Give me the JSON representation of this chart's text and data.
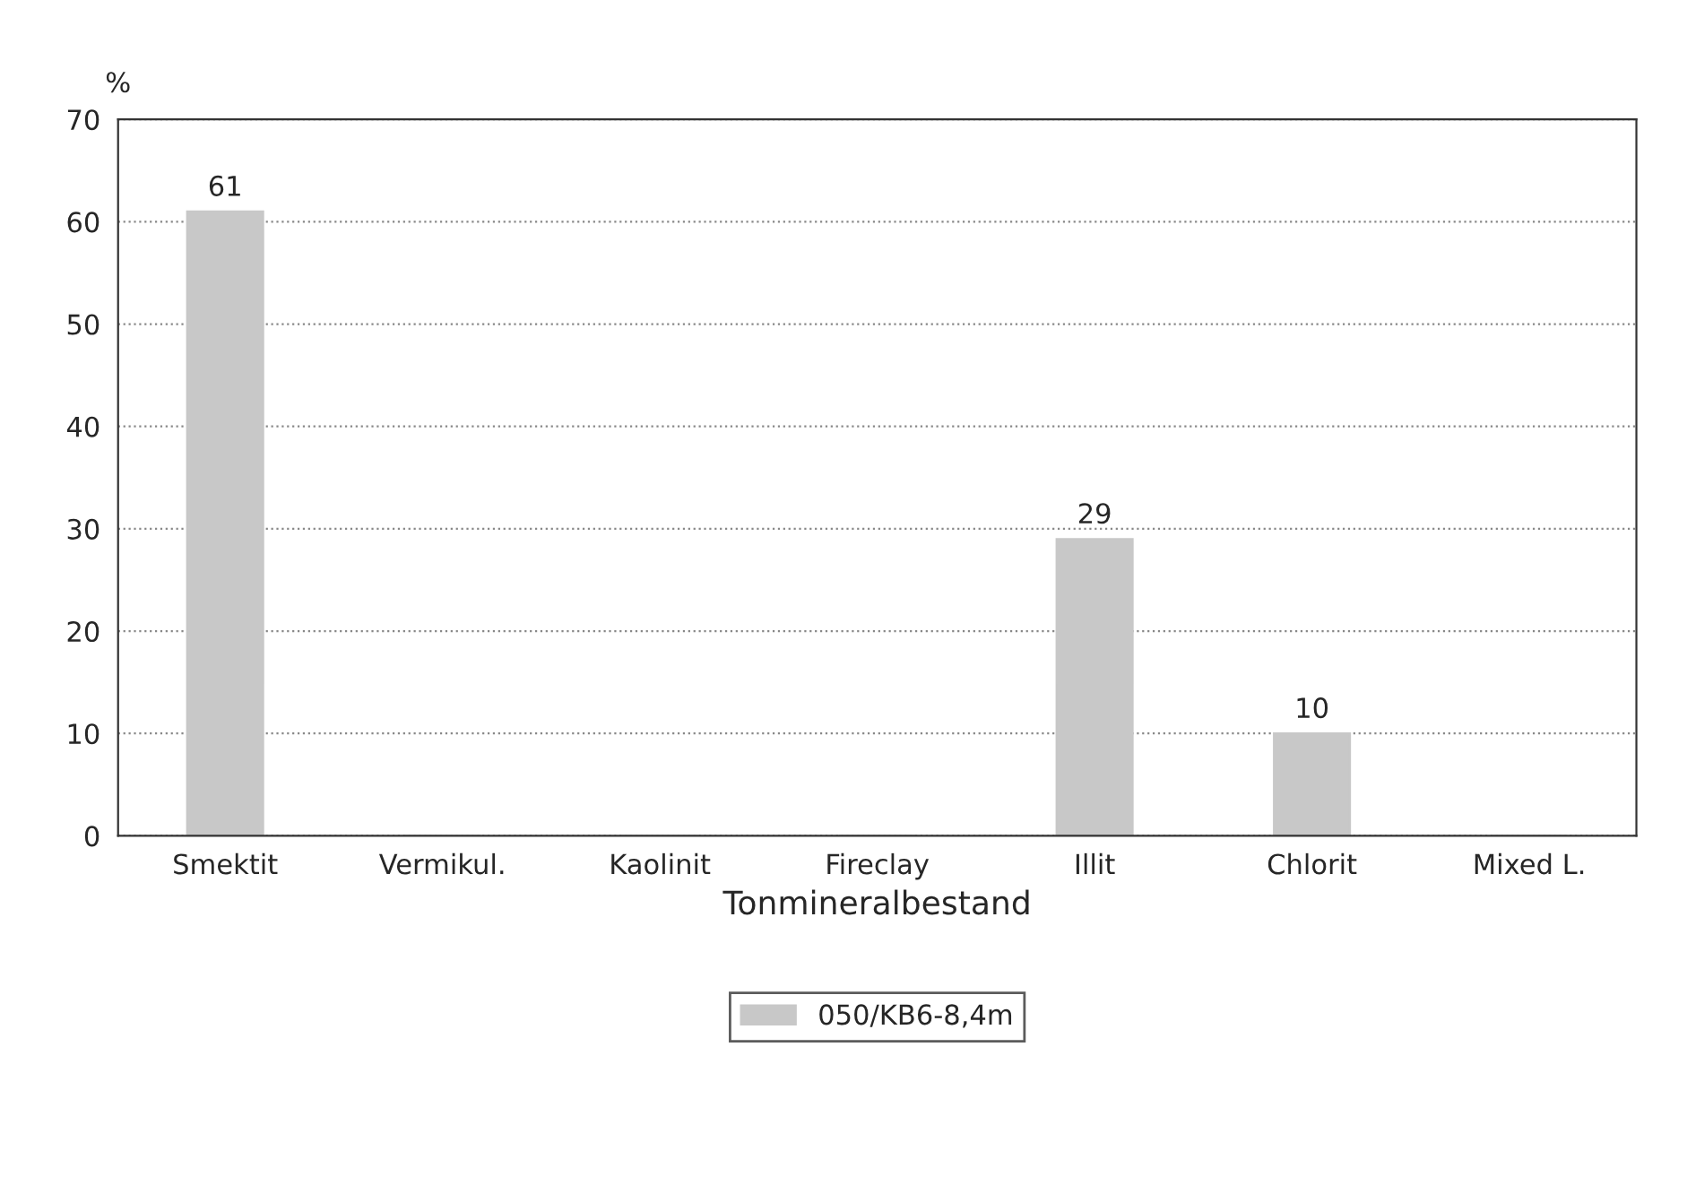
{
  "chart_data": {
    "type": "bar",
    "ylabel": "%",
    "xlabel": "Tonmineralbestand",
    "categories": [
      "Smektit",
      "Vermikul.",
      "Kaolinit",
      "Fireclay",
      "Illit",
      "Chlorit",
      "Mixed L."
    ],
    "series": [
      {
        "name": "050/KB6-8,4m",
        "color": "#c8c8c8",
        "values": [
          61,
          0,
          0,
          0,
          29,
          10,
          0
        ],
        "value_labels": [
          "61",
          null,
          null,
          null,
          "29",
          "10",
          null
        ]
      }
    ],
    "ylim": [
      0,
      70
    ],
    "yticks": [
      0,
      10,
      20,
      30,
      40,
      50,
      60,
      70
    ],
    "grid": "y",
    "legend": "bottom"
  }
}
